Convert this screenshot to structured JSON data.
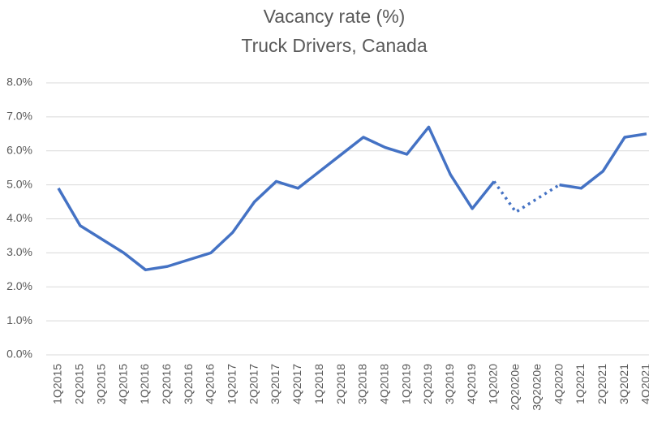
{
  "chart_data": {
    "type": "line",
    "title": "Vacancy rate (%)",
    "subtitle": "Truck Drivers, Canada",
    "categories": [
      "1Q2015",
      "2Q2015",
      "3Q2015",
      "4Q2015",
      "1Q2016",
      "2Q2016",
      "3Q2016",
      "4Q2016",
      "1Q2017",
      "2Q2017",
      "3Q2017",
      "4Q2017",
      "1Q2018",
      "2Q2018",
      "3Q2018",
      "4Q2018",
      "1Q2019",
      "2Q2019",
      "3Q2019",
      "4Q2019",
      "1Q2020",
      "2Q2020e",
      "3Q2020e",
      "4Q2020",
      "1Q2021",
      "2Q2021",
      "3Q2021",
      "4Q2021"
    ],
    "series": [
      {
        "color": "#4472c4",
        "dashed": false,
        "values": [
          4.9,
          3.8,
          3.4,
          3.0,
          2.5,
          2.6,
          2.8,
          3.0,
          3.6,
          4.5,
          5.1,
          4.9,
          5.4,
          5.9,
          6.4,
          6.1,
          5.9,
          6.7,
          5.3,
          4.3,
          5.1,
          null,
          null,
          5.0,
          4.9,
          5.4,
          6.4,
          6.5
        ]
      },
      {
        "color": "#4472c4",
        "dashed": true,
        "values": [
          null,
          null,
          null,
          null,
          null,
          null,
          null,
          null,
          null,
          null,
          null,
          null,
          null,
          null,
          null,
          null,
          null,
          null,
          null,
          null,
          5.1,
          4.2,
          4.6,
          5.0,
          null,
          null,
          null,
          null
        ]
      }
    ],
    "ylim": [
      0,
      8
    ],
    "yticks": [
      {
        "value": 0,
        "label": "0.0%"
      },
      {
        "value": 1,
        "label": "1.0%"
      },
      {
        "value": 2,
        "label": "2.0%"
      },
      {
        "value": 3,
        "label": "3.0%"
      },
      {
        "value": 4,
        "label": "4.0%"
      },
      {
        "value": 5,
        "label": "5.0%"
      },
      {
        "value": 6,
        "label": "6.0%"
      },
      {
        "value": 7,
        "label": "7.0%"
      },
      {
        "value": 8,
        "label": "8.0%"
      }
    ],
    "grid": true
  }
}
